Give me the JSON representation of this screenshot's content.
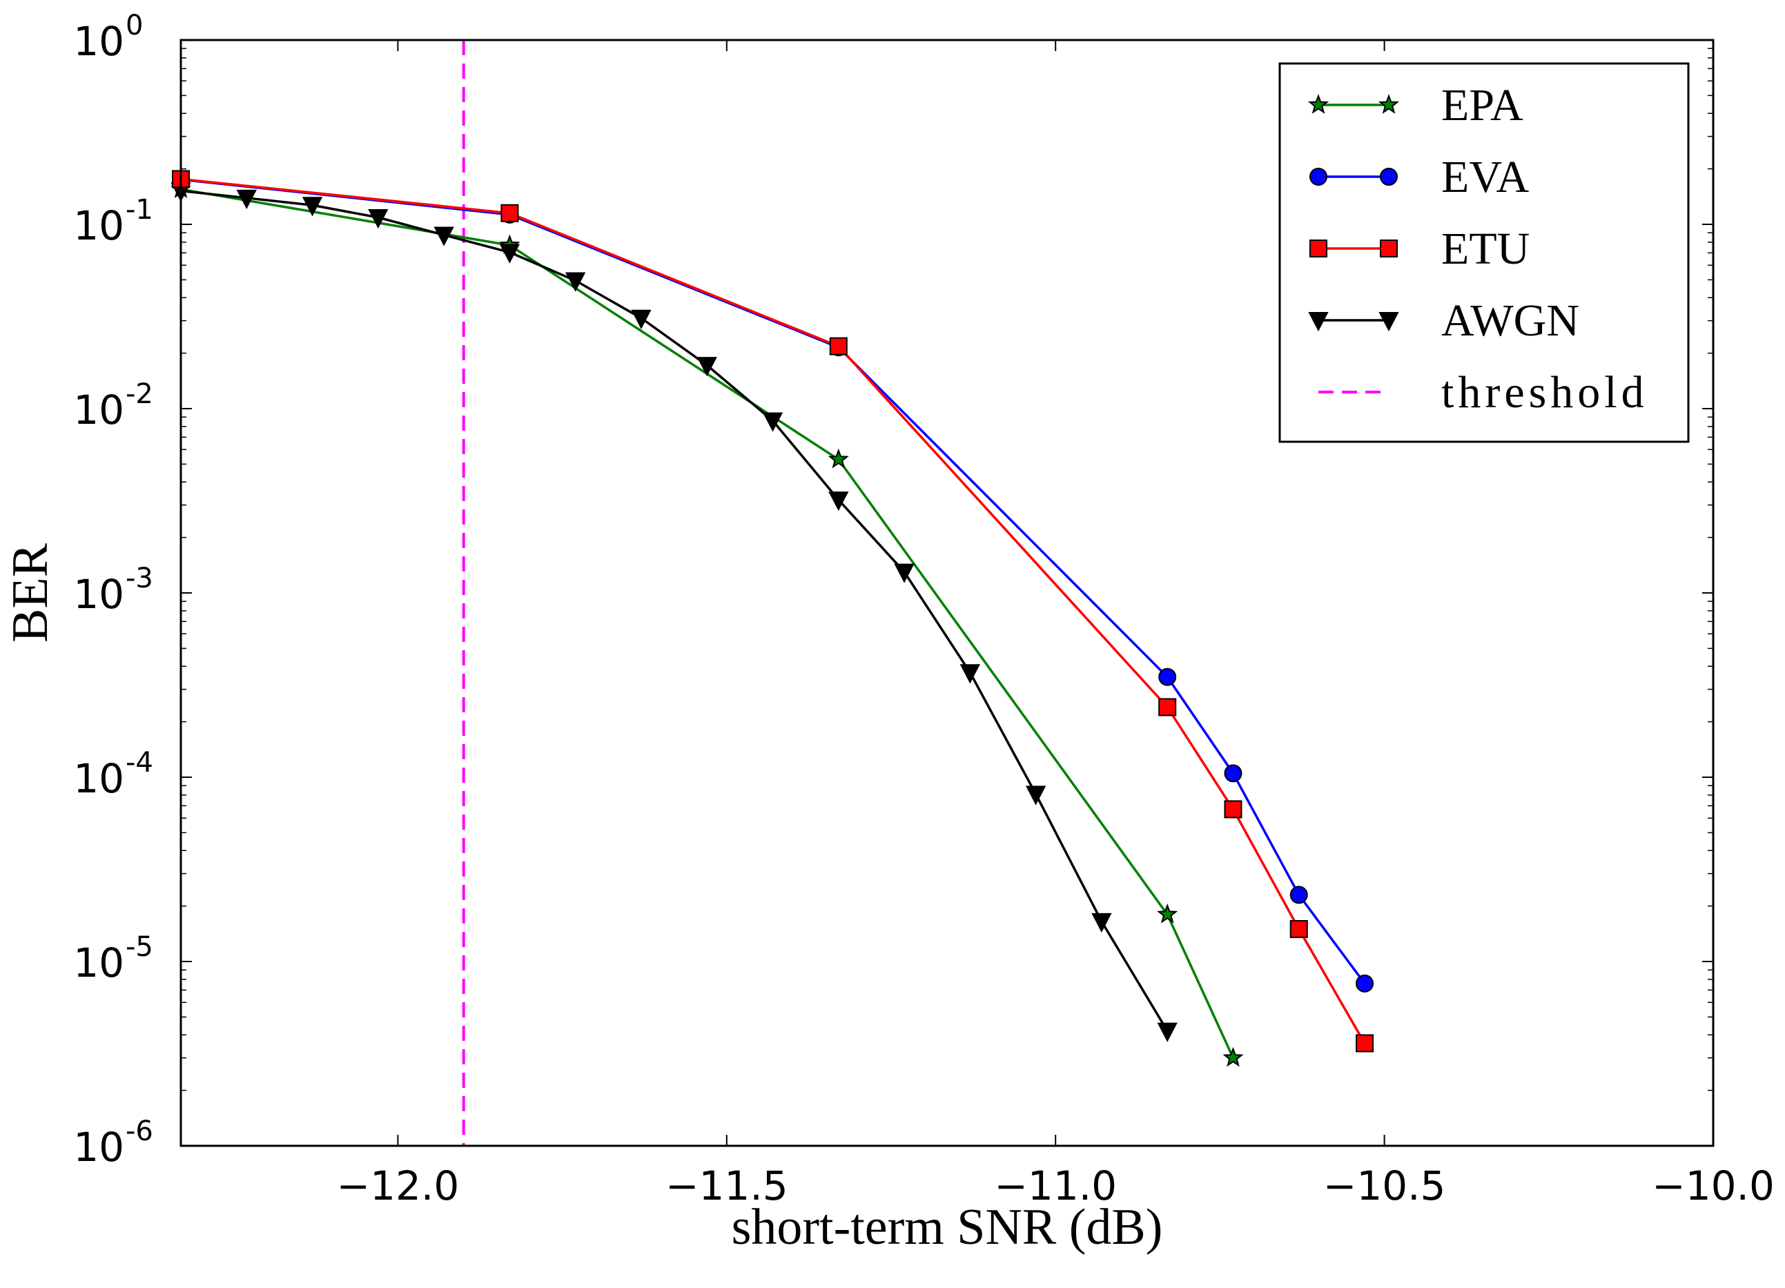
{
  "chart_data": {
    "type": "line",
    "title": "",
    "xlabel": "short-term SNR (dB)",
    "ylabel": "BER",
    "xscale": "linear",
    "yscale": "log",
    "xlim": [
      -12.33,
      -10.0
    ],
    "ylim": [
      1e-06,
      1
    ],
    "x_ticks": [
      -12.0,
      -11.5,
      -11.0,
      -10.5,
      -10.0
    ],
    "x_tick_labels": [
      "−12.0",
      "−11.5",
      "−11.0",
      "−10.5",
      "−10.0"
    ],
    "y_ticks": [
      {
        "value": 1,
        "base": "10",
        "exp": "0"
      },
      {
        "value": 0.1,
        "base": "10",
        "exp": "-1"
      },
      {
        "value": 0.01,
        "base": "10",
        "exp": "-2"
      },
      {
        "value": 0.001,
        "base": "10",
        "exp": "-3"
      },
      {
        "value": 0.0001,
        "base": "10",
        "exp": "-4"
      },
      {
        "value": 1e-05,
        "base": "10",
        "exp": "-5"
      },
      {
        "value": 1e-06,
        "base": "10",
        "exp": "-6"
      }
    ],
    "legend_position": "top-right",
    "series": [
      {
        "name": "EPA",
        "color": "#008000",
        "marker": "star",
        "x": [
          -12.33,
          -11.83,
          -11.33,
          -10.83,
          -10.73
        ],
        "y": [
          0.155,
          0.077,
          0.0053,
          1.8e-05,
          3e-06
        ]
      },
      {
        "name": "EVA",
        "color": "#0000ff",
        "marker": "circle",
        "x": [
          -12.33,
          -11.83,
          -11.33,
          -10.83,
          -10.73,
          -10.63,
          -10.53
        ],
        "y": [
          0.175,
          0.113,
          0.0215,
          0.00035,
          0.000105,
          2.3e-05,
          7.6e-06
        ]
      },
      {
        "name": "ETU",
        "color": "#ff0000",
        "marker": "square",
        "x": [
          -12.33,
          -11.83,
          -11.33,
          -10.83,
          -10.73,
          -10.63,
          -10.53
        ],
        "y": [
          0.176,
          0.115,
          0.0218,
          0.00024,
          6.7e-05,
          1.5e-05,
          3.6e-06
        ]
      },
      {
        "name": "AWGN",
        "color": "#000000",
        "marker": "triangle-down",
        "x": [
          -12.33,
          -12.23,
          -12.13,
          -12.03,
          -11.93,
          -11.83,
          -11.73,
          -11.63,
          -11.53,
          -11.43,
          -11.33,
          -11.23,
          -11.13,
          -11.03,
          -10.93,
          -10.83
        ],
        "y": [
          0.152,
          0.139,
          0.127,
          0.109,
          0.0875,
          0.0705,
          0.0495,
          0.031,
          0.0172,
          0.0086,
          0.0032,
          0.0013,
          0.00037,
          8.1e-05,
          1.65e-05,
          4.2e-06
        ]
      }
    ],
    "threshold": {
      "name": "threshold",
      "color": "#ff00ff",
      "x": -11.9,
      "style": "dashed"
    }
  }
}
